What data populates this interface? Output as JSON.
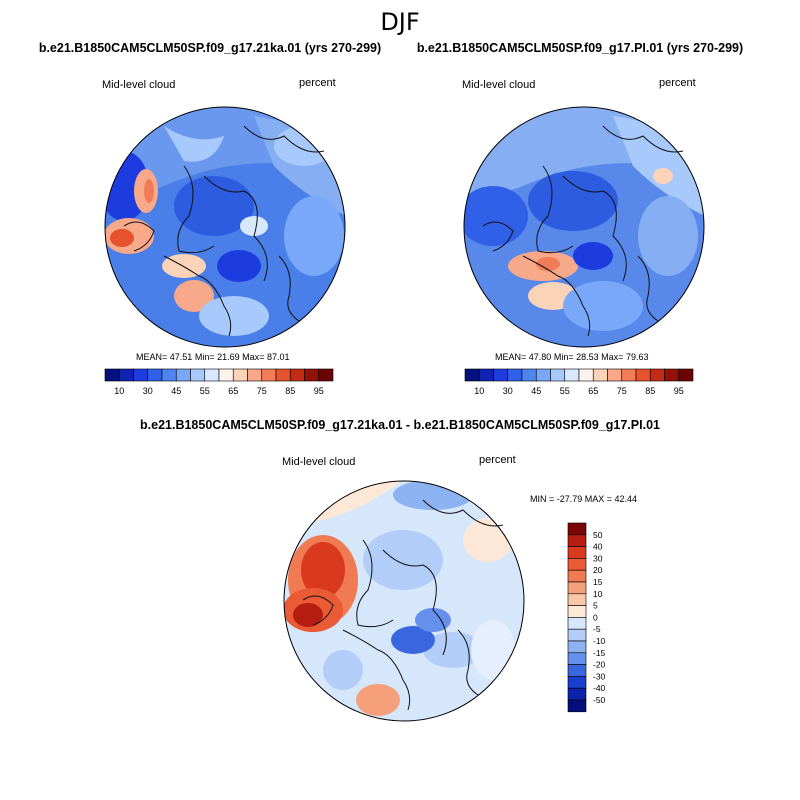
{
  "figure": {
    "season": "DJF",
    "panels": [
      {
        "title": "b.e21.B1850CAM5CLM50SP.f09_g17.21ka.01 (yrs 270-299)",
        "variable": "Mid-level cloud",
        "units": "percent",
        "stats": {
          "mean_label": "MEAN=",
          "mean": "47.51",
          "min_label": "Min=",
          "min": "21.69",
          "max_label": "Max=",
          "max": "87.01"
        }
      },
      {
        "title": "b.e21.B1850CAM5CLM50SP.f09_g17.PI.01 (yrs 270-299)",
        "variable": "Mid-level cloud",
        "units": "percent",
        "stats": {
          "mean_label": "MEAN=",
          "mean": "47.80",
          "min_label": "Min=",
          "min": "28.53",
          "max_label": "Max=",
          "max": "79.63"
        }
      },
      {
        "title": "b.e21.B1850CAM5CLM50SP.f09_g17.21ka.01 - b.e21.B1850CAM5CLM50SP.f09_g17.PI.01",
        "variable": "Mid-level cloud",
        "units": "percent",
        "minmax_text": "MIN = -27.79 MAX =  42.44"
      }
    ],
    "abs_colorbar": {
      "labels": [
        "10",
        "30",
        "45",
        "55",
        "65",
        "75",
        "85",
        "95"
      ],
      "colors": [
        "#04107e",
        "#0f22b2",
        "#1d3ce0",
        "#3160e8",
        "#4f85f0",
        "#78a8f7",
        "#a8c9fb",
        "#d8e8ff",
        "#fdf3ec",
        "#fbd3b8",
        "#f7a98a",
        "#f07d58",
        "#e6522d",
        "#c52a14",
        "#94110a",
        "#6a0404"
      ]
    },
    "diff_colorbar": {
      "labels": [
        "50",
        "40",
        "30",
        "20",
        "15",
        "10",
        "5",
        "0",
        "-5",
        "-10",
        "-15",
        "-20",
        "-30",
        "-40",
        "-50"
      ],
      "colors": [
        "#7a0606",
        "#b51d10",
        "#d9391d",
        "#ea5a34",
        "#f07a52",
        "#f6a07b",
        "#fac6a8",
        "#fde8d8",
        "#d6e6fb",
        "#b2cdf7",
        "#8db2f2",
        "#6590ec",
        "#3a67e0",
        "#1a3fcf",
        "#0d22aa",
        "#050f7c"
      ]
    }
  }
}
